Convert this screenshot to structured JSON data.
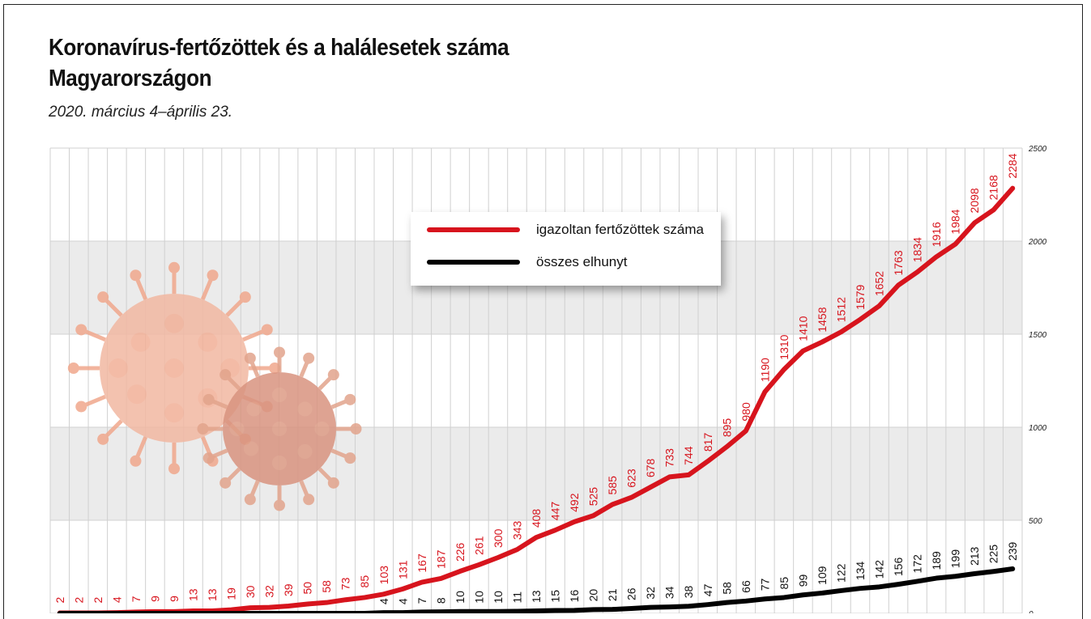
{
  "chart_data": {
    "type": "line",
    "title": "Koronavírus-fertőzöttek és a halálesetek száma Magyarországon",
    "subtitle": "2020. március 4–április 23.",
    "ylim": [
      0,
      2500
    ],
    "yticks": [
      "0",
      "500",
      "1000",
      "1500",
      "2000",
      "2500"
    ],
    "grid": true,
    "legend_position": "top-center",
    "series": [
      {
        "name": "igazoltan fertőzöttek száma",
        "color": "#d7141d",
        "values": [
          2,
          2,
          2,
          4,
          7,
          9,
          9,
          13,
          13,
          19,
          30,
          32,
          39,
          50,
          58,
          73,
          85,
          103,
          131,
          167,
          187,
          226,
          261,
          300,
          343,
          408,
          447,
          492,
          525,
          585,
          623,
          678,
          733,
          744,
          817,
          895,
          980,
          1190,
          1310,
          1410,
          1458,
          1512,
          1579,
          1652,
          1763,
          1834,
          1916,
          1984,
          2098,
          2168,
          2284
        ]
      },
      {
        "name": "összes elhunyt",
        "color": "#000000",
        "values": [
          0,
          0,
          0,
          0,
          0,
          0,
          0,
          0,
          0,
          0,
          0,
          0,
          0,
          0,
          0,
          0,
          0,
          4,
          4,
          7,
          8,
          10,
          10,
          10,
          11,
          13,
          15,
          16,
          20,
          21,
          26,
          32,
          34,
          38,
          47,
          58,
          66,
          77,
          85,
          99,
          109,
          122,
          134,
          142,
          156,
          172,
          189,
          199,
          213,
          225,
          239
        ],
        "labels_from_index": 17
      }
    ]
  }
}
